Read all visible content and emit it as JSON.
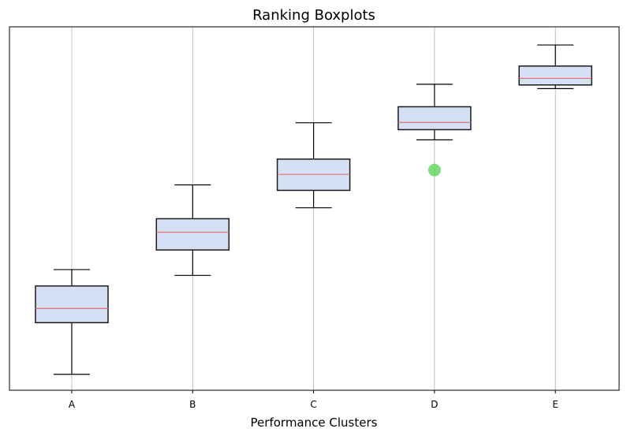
{
  "chart_data": {
    "type": "box",
    "title": "Ranking Boxplots",
    "xlabel": "Performance Clusters",
    "ylabel": "",
    "ylim": [
      0,
      100
    ],
    "y_ticks_visible": false,
    "grid": "vertical",
    "colors": {
      "box_fill": "#d6e0f5",
      "box_edge": "#1a1a1a",
      "median": "#e07070",
      "whisker": "#000000",
      "outlier": "#5cd65c",
      "grid": "#b0b0b0"
    },
    "categories": [
      "A",
      "B",
      "C",
      "D",
      "E"
    ],
    "boxes": [
      {
        "whislo": 4.4,
        "q1": 18.6,
        "med": 22.5,
        "q3": 28.7,
        "whishi": 33.2,
        "fliers": []
      },
      {
        "whislo": 31.6,
        "q1": 38.6,
        "med": 43.5,
        "q3": 47.2,
        "whishi": 56.5,
        "fliers": []
      },
      {
        "whislo": 50.2,
        "q1": 55.0,
        "med": 59.4,
        "q3": 63.6,
        "whishi": 73.6,
        "fliers": []
      },
      {
        "whislo": 68.9,
        "q1": 71.7,
        "med": 73.7,
        "q3": 78.0,
        "whishi": 84.2,
        "fliers": [
          60.6
        ]
      },
      {
        "whislo": 83.0,
        "q1": 84.0,
        "med": 85.8,
        "q3": 89.2,
        "whishi": 95.0,
        "fliers": []
      }
    ]
  }
}
